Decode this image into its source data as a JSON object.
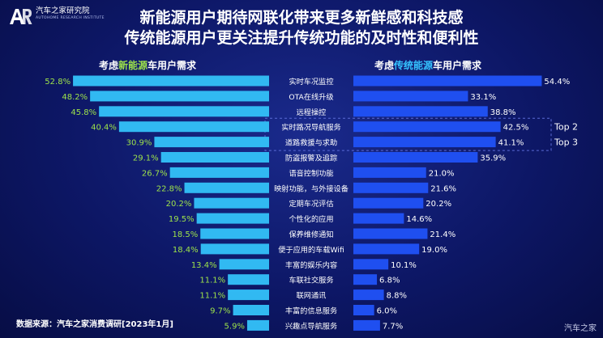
{
  "logo": {
    "name": "汽车之家研究院",
    "sub": "AUTOHOME RESEARCH INSTITUTE"
  },
  "title_line1": "新能源用户期待网联化带来更多新鲜感和科技感",
  "title_line2": "传统能源用户更关注提升传统功能的及时性和便利性",
  "left_panel": {
    "prefix": "考虑",
    "highlight": "新能源",
    "suffix": "车用户需求"
  },
  "right_panel": {
    "prefix": "考虑",
    "highlight": "传统能源",
    "suffix": "车用户需求"
  },
  "source": "数据来源：汽车之家消费调研[2023年1月]",
  "watermark": "汽车之家",
  "colors": {
    "left_bar": "#31b9f2",
    "right_bar": "#1f4ff0",
    "left_label": "#9ee34a",
    "right_label": "#ffffff",
    "highlight_box": "#5b6bd6"
  },
  "chart_data": {
    "type": "bar",
    "orientation": "horizontal-butterfly",
    "categories": [
      "实时车况监控",
      "OTA在线升级",
      "远程操控",
      "实时路况导航服务",
      "道路救援与求助",
      "防盗报警及追踪",
      "语音控制功能",
      "映射功能，与外接设备",
      "定期车况评估",
      "个性化的应用",
      "保养维修通知",
      "便于应用的车载Wifi",
      "丰富的娱乐内容",
      "车联社交服务",
      "联网通讯",
      "丰富的信息服务",
      "兴趣点导航服务"
    ],
    "series": [
      {
        "name": "考虑新能源车用户需求",
        "values": [
          52.8,
          48.2,
          45.8,
          40.4,
          30.9,
          29.1,
          26.7,
          22.8,
          20.2,
          19.5,
          18.5,
          18.4,
          13.4,
          11.1,
          11.1,
          9.7,
          5.9
        ],
        "labels": [
          "52.8%",
          "48.2%",
          "45.8%",
          "40.4%",
          "30.9%",
          "29.1%",
          "26.7%",
          "22.8%",
          "20.2%",
          "19.5%",
          "18.5%",
          "18.4%",
          "13.4%",
          "11.1%",
          "11.1%",
          "9.7%",
          "5.9%"
        ]
      },
      {
        "name": "考虑传统能源车用户需求",
        "values": [
          54.4,
          33.1,
          38.8,
          42.5,
          41.1,
          35.9,
          21.0,
          21.6,
          20.2,
          14.6,
          21.4,
          19.0,
          10.1,
          6.8,
          8.8,
          6.0,
          7.7
        ],
        "labels": [
          "54.4%",
          "33.1%",
          "38.8%",
          "42.5%",
          "41.1%",
          "35.9%",
          "21.0%",
          "21.6%",
          "20.2%",
          "14.6%",
          "21.4%",
          "19.0%",
          "10.1%",
          "6.8%",
          "8.8%",
          "6.0%",
          "7.7%"
        ]
      }
    ],
    "highlight_rows": [
      3,
      4
    ],
    "annotations": [
      "Top 2",
      "Top 3"
    ],
    "xlim": [
      0,
      55
    ]
  }
}
